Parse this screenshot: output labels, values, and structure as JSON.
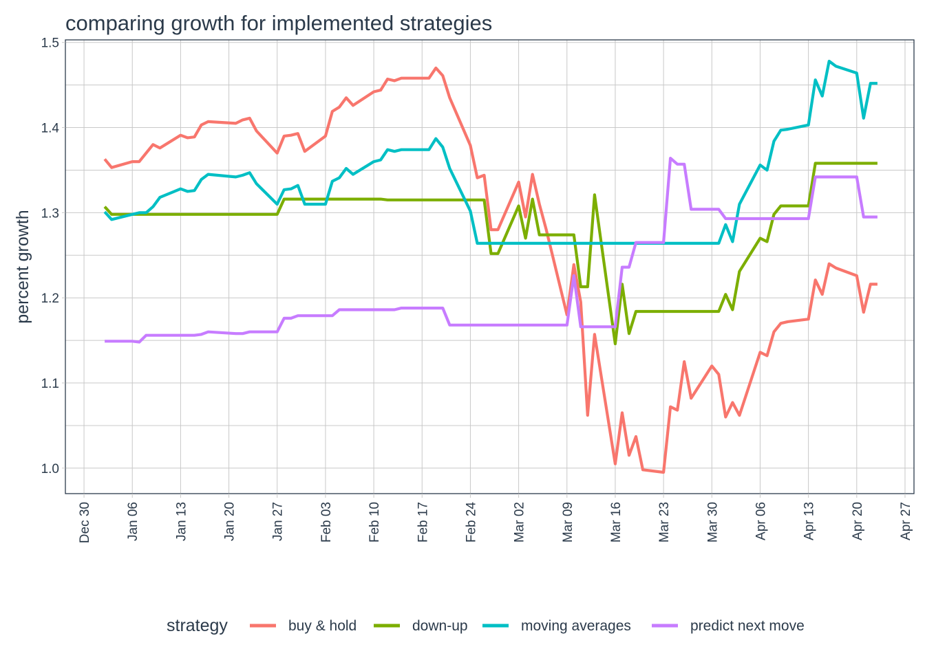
{
  "chart_data": {
    "type": "line",
    "title": "comparing growth for implemented strategies",
    "xlabel": "",
    "ylabel": "percent growth",
    "x_unit": "days since Dec 30",
    "xlim": [
      -2.7,
      120.3
    ],
    "ylim": [
      0.97,
      1.503
    ],
    "grid": true,
    "legend_position": "bottom",
    "legend_title": "strategy",
    "y_ticks": [
      1.0,
      1.1,
      1.2,
      1.3,
      1.4,
      1.5
    ],
    "y_tick_labels": [
      "1.0",
      "1.1",
      "1.2",
      "1.3",
      "1.4",
      "1.5"
    ],
    "x_ticks": [
      0,
      7,
      14,
      21,
      28,
      35,
      42,
      49,
      56,
      63,
      70,
      77,
      84,
      91,
      98,
      105,
      112,
      119
    ],
    "x_tick_labels": [
      "Dec 30",
      "Jan 06",
      "Jan 13",
      "Jan 20",
      "Jan 27",
      "Feb 03",
      "Feb 10",
      "Feb 17",
      "Feb 24",
      "Mar 02",
      "Mar 09",
      "Mar 16",
      "Mar 23",
      "Mar 30",
      "Apr 06",
      "Apr 13",
      "Apr 20",
      "Apr 27"
    ],
    "x": [
      3,
      4,
      7,
      8,
      9,
      10,
      11,
      14,
      15,
      16,
      17,
      18,
      22,
      23,
      24,
      25,
      28,
      29,
      30,
      31,
      32,
      35,
      36,
      37,
      38,
      39,
      42,
      43,
      44,
      45,
      46,
      50,
      51,
      52,
      53,
      56,
      57,
      58,
      59,
      60,
      63,
      64,
      65,
      66,
      67,
      70,
      71,
      72,
      73,
      74,
      77,
      78,
      79,
      80,
      81,
      84,
      85,
      86,
      87,
      88,
      91,
      92,
      93,
      94,
      95,
      98,
      99,
      100,
      101,
      102,
      105,
      106,
      107,
      108,
      109,
      112,
      113,
      114,
      115
    ],
    "series": [
      {
        "name": "buy & hold",
        "color": "#F8766D",
        "values": [
          1.363,
          1.353,
          1.36,
          1.36,
          1.37,
          1.38,
          1.376,
          1.391,
          1.388,
          1.389,
          1.403,
          1.407,
          1.405,
          1.409,
          1.411,
          1.396,
          1.37,
          1.39,
          1.391,
          1.393,
          1.372,
          1.39,
          1.419,
          1.424,
          1.435,
          1.426,
          1.442,
          1.444,
          1.457,
          1.455,
          1.458,
          1.458,
          1.47,
          1.461,
          1.435,
          1.379,
          1.341,
          1.344,
          1.28,
          1.28,
          1.336,
          1.295,
          1.345,
          1.31,
          1.28,
          1.18,
          1.239,
          1.195,
          1.062,
          1.157,
          1.005,
          1.065,
          1.015,
          1.037,
          0.998,
          0.995,
          1.072,
          1.068,
          1.125,
          1.082,
          1.12,
          1.11,
          1.06,
          1.077,
          1.062,
          1.136,
          1.132,
          1.16,
          1.17,
          1.172,
          1.175,
          1.221,
          1.204,
          1.24,
          1.235,
          1.226,
          1.183,
          1.216,
          1.216
        ]
      },
      {
        "name": "down-up",
        "color": "#7CAE00",
        "values": [
          1.307,
          1.298,
          1.298,
          1.298,
          1.298,
          1.298,
          1.298,
          1.298,
          1.298,
          1.298,
          1.298,
          1.298,
          1.298,
          1.298,
          1.298,
          1.298,
          1.298,
          1.316,
          1.316,
          1.316,
          1.316,
          1.316,
          1.316,
          1.316,
          1.316,
          1.316,
          1.316,
          1.316,
          1.315,
          1.315,
          1.315,
          1.315,
          1.315,
          1.315,
          1.315,
          1.315,
          1.315,
          1.315,
          1.252,
          1.252,
          1.308,
          1.27,
          1.316,
          1.274,
          1.274,
          1.274,
          1.274,
          1.213,
          1.213,
          1.321,
          1.146,
          1.216,
          1.158,
          1.184,
          1.184,
          1.184,
          1.184,
          1.184,
          1.184,
          1.184,
          1.184,
          1.184,
          1.204,
          1.186,
          1.231,
          1.27,
          1.266,
          1.298,
          1.308,
          1.308,
          1.308,
          1.358,
          1.358,
          1.358,
          1.358,
          1.358,
          1.358,
          1.358,
          1.358
        ]
      },
      {
        "name": "moving averages",
        "color": "#00BFC4",
        "values": [
          1.301,
          1.292,
          1.298,
          1.3,
          1.3,
          1.307,
          1.318,
          1.328,
          1.325,
          1.326,
          1.339,
          1.345,
          1.342,
          1.344,
          1.347,
          1.334,
          1.31,
          1.327,
          1.328,
          1.332,
          1.31,
          1.31,
          1.337,
          1.341,
          1.352,
          1.345,
          1.36,
          1.362,
          1.374,
          1.372,
          1.374,
          1.374,
          1.387,
          1.377,
          1.352,
          1.302,
          1.264,
          1.264,
          1.264,
          1.264,
          1.264,
          1.264,
          1.264,
          1.264,
          1.264,
          1.264,
          1.264,
          1.264,
          1.264,
          1.264,
          1.264,
          1.264,
          1.264,
          1.264,
          1.264,
          1.264,
          1.264,
          1.264,
          1.264,
          1.264,
          1.264,
          1.264,
          1.286,
          1.266,
          1.31,
          1.356,
          1.35,
          1.384,
          1.397,
          1.398,
          1.403,
          1.456,
          1.437,
          1.478,
          1.472,
          1.464,
          1.411,
          1.452,
          1.452
        ]
      },
      {
        "name": "predict next move",
        "color": "#C77CFF",
        "values": [
          1.149,
          1.149,
          1.149,
          1.148,
          1.156,
          1.156,
          1.156,
          1.156,
          1.156,
          1.156,
          1.157,
          1.16,
          1.158,
          1.158,
          1.16,
          1.16,
          1.16,
          1.176,
          1.176,
          1.179,
          1.179,
          1.179,
          1.179,
          1.186,
          1.186,
          1.186,
          1.186,
          1.186,
          1.186,
          1.186,
          1.188,
          1.188,
          1.188,
          1.188,
          1.168,
          1.168,
          1.168,
          1.168,
          1.168,
          1.168,
          1.168,
          1.168,
          1.168,
          1.168,
          1.168,
          1.168,
          1.226,
          1.166,
          1.166,
          1.166,
          1.166,
          1.236,
          1.236,
          1.265,
          1.265,
          1.265,
          1.364,
          1.357,
          1.357,
          1.304,
          1.304,
          1.304,
          1.293,
          1.293,
          1.293,
          1.293,
          1.293,
          1.293,
          1.293,
          1.293,
          1.293,
          1.342,
          1.342,
          1.342,
          1.342,
          1.342,
          1.295,
          1.295,
          1.295
        ]
      }
    ]
  }
}
